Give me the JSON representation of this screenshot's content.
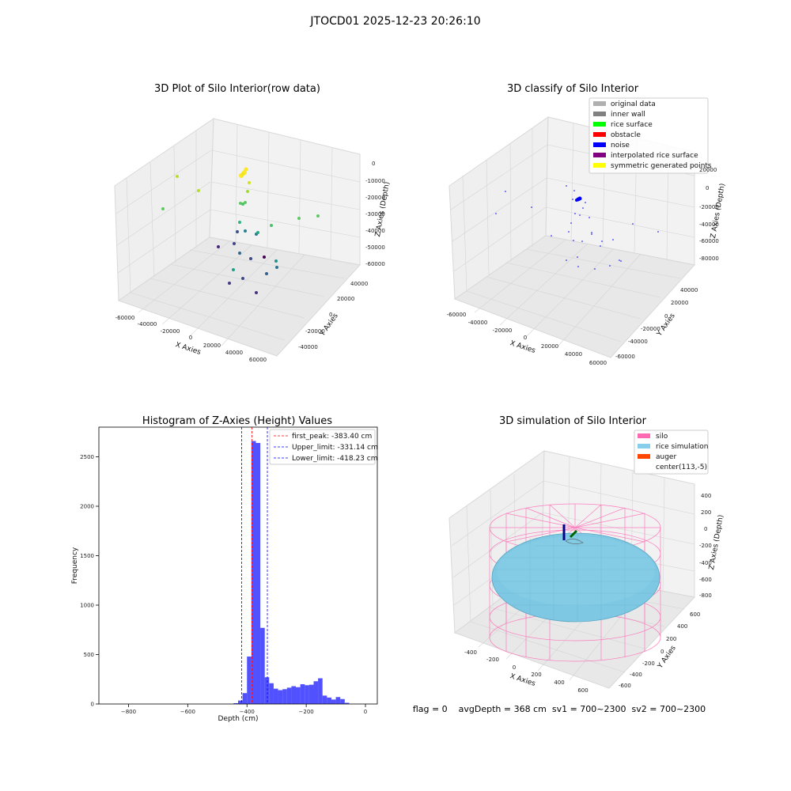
{
  "suptitle": "JTOCD01 2025-12-23 20:26:10",
  "panel_titles": {
    "raw": "3D Plot of Silo Interior(row data)",
    "classify": "3D classify of Silo Interior",
    "histogram": "Histogram of Z-Axies (Height) Values",
    "simulation": "3D simulation of Silo Interior"
  },
  "footer": "flag = 0    avgDepth = 368 cm  sv1 = 700~2300  sv2 = 700~2300",
  "colors": {
    "hist": "#3333ff",
    "first_peak": "#ff0000",
    "limits": "#0000ff",
    "silo": "#ff69b4",
    "rice": "#7ec8e3",
    "auger": "#ff4500"
  },
  "chart_data": [
    {
      "type": "scatter",
      "subtype": "3d",
      "title": "3D Plot of Silo Interior(row data)",
      "xlabel": "X Axies",
      "ylabel": "Y Axies",
      "zlabel": "Z Axies (Depth)",
      "x_ticks": [
        "-60000",
        "-40000",
        "-20000",
        "0",
        "20000",
        "40000",
        "60000"
      ],
      "y_ticks": [
        "-40000",
        "-20000",
        "0",
        "20000",
        "40000"
      ],
      "z_ticks": [
        "0",
        "-10000",
        "-20000",
        "-30000",
        "-40000",
        "-50000",
        "-60000"
      ],
      "colormap": "viridis (by depth)"
    },
    {
      "type": "scatter",
      "subtype": "3d",
      "title": "3D classify of Silo Interior",
      "xlabel": "X Axies",
      "ylabel": "Y Axies",
      "zlabel": "Z Axies (Depth)",
      "x_ticks": [
        "-60000",
        "-40000",
        "-20000",
        "0",
        "20000",
        "40000",
        "60000"
      ],
      "y_ticks": [
        "-60000",
        "-40000",
        "-20000",
        "0",
        "20000",
        "40000"
      ],
      "z_ticks": [
        "20000",
        "0",
        "-20000",
        "-40000",
        "-60000",
        "-80000"
      ],
      "legend_position": "upper-right",
      "legend": [
        {
          "label": "original data",
          "color": "#b0b0b0"
        },
        {
          "label": "inner wall",
          "color": "#808080"
        },
        {
          "label": "rice surface",
          "color": "#00ff00"
        },
        {
          "label": "obstacle",
          "color": "#ff0000"
        },
        {
          "label": "noise",
          "color": "#0000ff"
        },
        {
          "label": "interpolated rice surface",
          "color": "#800080"
        },
        {
          "label": "symmetric generated points",
          "color": "#ffff00"
        }
      ]
    },
    {
      "type": "bar",
      "subtype": "histogram",
      "title": "Histogram of Z-Axies (Height) Values",
      "xlabel": "Depth (cm)",
      "ylabel": "Frequency",
      "xlim": [
        -900,
        40
      ],
      "ylim": [
        0,
        2800
      ],
      "x_ticks": [
        -800,
        -600,
        -400,
        -200,
        0
      ],
      "x_tick_labels": [
        "−800",
        "−600",
        "−400",
        "−200",
        "0"
      ],
      "y_ticks": [
        0,
        500,
        1000,
        1500,
        2000,
        2500
      ],
      "y_tick_labels": [
        "0",
        "500",
        "1000",
        "1500",
        "2000",
        "2500"
      ],
      "bins": [
        {
          "x0": -445,
          "x1": -430,
          "value": 8
        },
        {
          "x0": -430,
          "x1": -415,
          "value": 35
        },
        {
          "x0": -415,
          "x1": -400,
          "value": 110
        },
        {
          "x0": -400,
          "x1": -385,
          "value": 480
        },
        {
          "x0": -385,
          "x1": -370,
          "value": 2660
        },
        {
          "x0": -370,
          "x1": -355,
          "value": 2640
        },
        {
          "x0": -355,
          "x1": -340,
          "value": 770
        },
        {
          "x0": -340,
          "x1": -325,
          "value": 270
        },
        {
          "x0": -325,
          "x1": -310,
          "value": 210
        },
        {
          "x0": -310,
          "x1": -295,
          "value": 155
        },
        {
          "x0": -295,
          "x1": -280,
          "value": 140
        },
        {
          "x0": -280,
          "x1": -265,
          "value": 150
        },
        {
          "x0": -265,
          "x1": -250,
          "value": 165
        },
        {
          "x0": -250,
          "x1": -235,
          "value": 180
        },
        {
          "x0": -235,
          "x1": -220,
          "value": 170
        },
        {
          "x0": -220,
          "x1": -205,
          "value": 200
        },
        {
          "x0": -205,
          "x1": -190,
          "value": 190
        },
        {
          "x0": -190,
          "x1": -175,
          "value": 195
        },
        {
          "x0": -175,
          "x1": -160,
          "value": 230
        },
        {
          "x0": -160,
          "x1": -145,
          "value": 260
        },
        {
          "x0": -145,
          "x1": -130,
          "value": 85
        },
        {
          "x0": -130,
          "x1": -115,
          "value": 65
        },
        {
          "x0": -115,
          "x1": -100,
          "value": 45
        },
        {
          "x0": -100,
          "x1": -85,
          "value": 70
        },
        {
          "x0": -85,
          "x1": -70,
          "value": 50
        },
        {
          "x0": -70,
          "x1": -55,
          "value": 12
        }
      ],
      "vlines": [
        {
          "label": "first_peak: -383.40 cm",
          "x": -383.4,
          "color": "#ff0000"
        },
        {
          "label": "Upper_limit: -331.14 cm",
          "x": -331.14,
          "color": "#0000ff"
        },
        {
          "label": "Lower_limit: -418.23 cm",
          "x": -418.23,
          "color": "#0000ff"
        }
      ],
      "legend_position": "upper-right"
    },
    {
      "type": "scatter",
      "subtype": "3d",
      "title": "3D simulation of Silo Interior",
      "xlabel": "X Axies",
      "ylabel": "Y Axies",
      "zlabel": "Z Axies (Depth)",
      "x_ticks": [
        "-400",
        "-200",
        "0",
        "200",
        "400",
        "600"
      ],
      "y_ticks": [
        "-600",
        "-400",
        "-200",
        "0",
        "200",
        "400",
        "600"
      ],
      "z_ticks": [
        "400",
        "200",
        "0",
        "-200",
        "-400",
        "-600",
        "-800"
      ],
      "legend_position": "upper-right",
      "legend": [
        {
          "label": "silo",
          "color": "#ff69b4"
        },
        {
          "label": "rice simulation",
          "color": "#87ceeb"
        },
        {
          "label": "auger",
          "color": "#ff4500"
        },
        {
          "label": "center(113,-5)",
          "color": ""
        }
      ]
    }
  ]
}
